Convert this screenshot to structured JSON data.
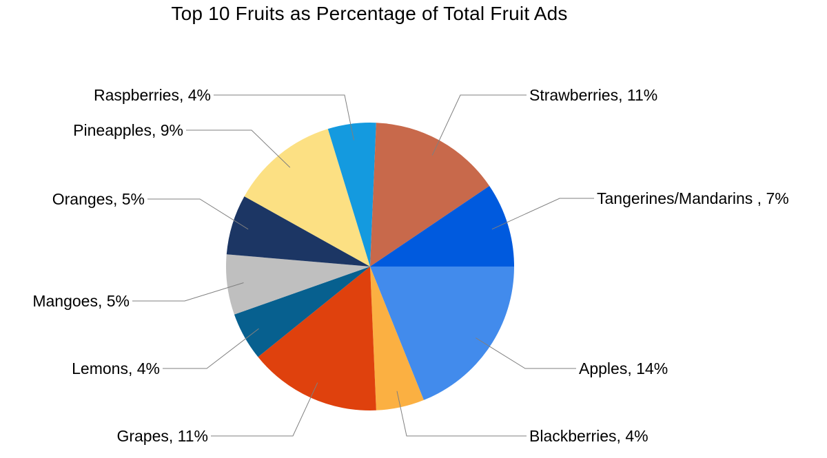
{
  "chart_data": {
    "type": "pie",
    "title": "Top 10 Fruits as Percentage of Total Fruit Ads",
    "start_angle_deg": 0,
    "direction": "clockwise-from-east",
    "slices": [
      {
        "name": "Apples",
        "value": 14,
        "label": "Apples, 14%",
        "color": "#428BEC"
      },
      {
        "name": "Blackberries",
        "value": 4,
        "label": "Blackberries, 4%",
        "color": "#FBB042"
      },
      {
        "name": "Grapes",
        "value": 11,
        "label": "Grapes, 11%",
        "color": "#DF410D"
      },
      {
        "name": "Lemons",
        "value": 4,
        "label": "Lemons, 4%",
        "color": "#07608F"
      },
      {
        "name": "Mangoes",
        "value": 5,
        "label": "Mangoes, 5%",
        "color": "#BFBFBF"
      },
      {
        "name": "Oranges",
        "value": 5,
        "label": "Oranges, 5%",
        "color": "#1C3664"
      },
      {
        "name": "Pineapples",
        "value": 9,
        "label": "Pineapples, 9%",
        "color": "#FCE083"
      },
      {
        "name": "Raspberries",
        "value": 4,
        "label": "Raspberries, 4%",
        "color": "#149ADF"
      },
      {
        "name": "Strawberries",
        "value": 11,
        "label": "Strawberries, 11%",
        "color": "#C8694B"
      },
      {
        "name": "Tangerines/Mandarins",
        "value": 7,
        "label": "Tangerines/Mandarins , 7%",
        "color": "#005ADE"
      }
    ]
  }
}
